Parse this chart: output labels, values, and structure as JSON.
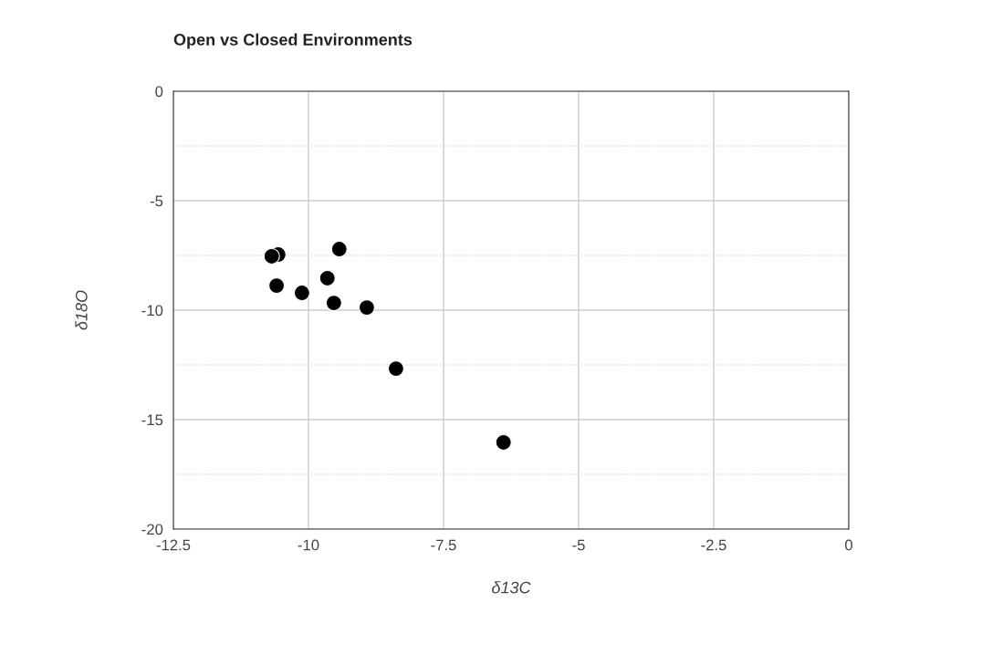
{
  "chart_data": {
    "type": "scatter",
    "title": "Open vs Closed Environments",
    "xlabel": "δ13C",
    "ylabel": "δ18O",
    "x": [
      -10.68,
      -10.56,
      -9.43,
      -10.59,
      -10.12,
      -9.65,
      -9.53,
      -8.92,
      -8.38,
      -6.39
    ],
    "series": [
      {
        "color": "#000000",
        "values": [
          -7.54,
          -7.46,
          -7.21,
          -8.88,
          -9.21,
          -8.54,
          -9.67,
          -9.88,
          -12.67,
          -16.04
        ]
      }
    ],
    "xlim": [
      -12.5,
      0
    ],
    "xticks": [
      -12.5,
      -10,
      -7.5,
      -5,
      -2.5,
      0
    ],
    "ylim": [
      -20,
      0
    ],
    "yticks": [
      -20,
      {
        "value": -17.5,
        "label": null
      },
      -15,
      {
        "value": -12.5,
        "label": null
      },
      -10,
      {
        "value": -7.5,
        "label": null
      },
      -5,
      {
        "value": -2.5,
        "label": null
      },
      0
    ],
    "grid": true,
    "marker": "circle",
    "legend": false
  }
}
